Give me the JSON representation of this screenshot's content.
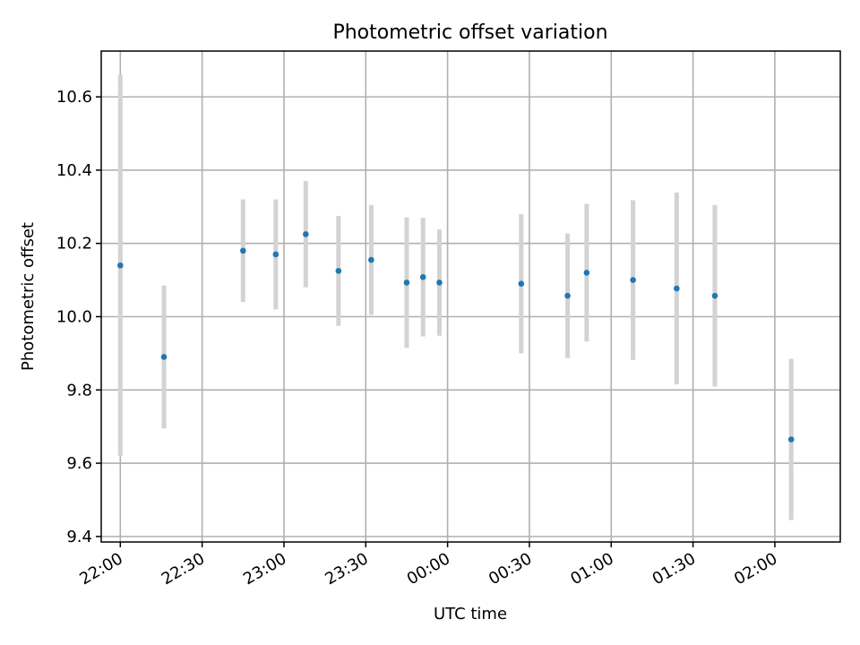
{
  "chart_data": {
    "type": "scatter",
    "title": "Photometric offset variation",
    "xlabel": "UTC time",
    "ylabel": "Photometric offset",
    "grid": true,
    "x_axis_kind": "time",
    "x_tick_labels": [
      "22:00",
      "22:30",
      "23:00",
      "23:30",
      "00:00",
      "00:30",
      "01:00",
      "01:30",
      "02:00"
    ],
    "y_ticks": [
      9.4,
      9.6,
      9.8,
      10.0,
      10.2,
      10.4,
      10.6
    ],
    "y_tick_labels": [
      "9.4",
      "9.6",
      "9.8",
      "10.0",
      "10.2",
      "10.4",
      "10.6"
    ],
    "ylim": [
      9.385,
      10.725
    ],
    "xlim": [
      "21:53",
      "02:24"
    ],
    "series": [
      {
        "marker_color": "#1f77b4",
        "errorbar_color": "#d3d3d3",
        "points": [
          {
            "x": "22:00",
            "y": 10.14,
            "err": 0.52
          },
          {
            "x": "22:16",
            "y": 9.89,
            "err": 0.195
          },
          {
            "x": "22:45",
            "y": 10.18,
            "err": 0.14
          },
          {
            "x": "22:57",
            "y": 10.17,
            "err": 0.15
          },
          {
            "x": "23:08",
            "y": 10.225,
            "err": 0.145
          },
          {
            "x": "23:20",
            "y": 10.125,
            "err": 0.15
          },
          {
            "x": "23:32",
            "y": 10.155,
            "err": 0.15
          },
          {
            "x": "23:45",
            "y": 10.093,
            "err": 0.178
          },
          {
            "x": "23:51",
            "y": 10.108,
            "err": 0.162
          },
          {
            "x": "23:57",
            "y": 10.093,
            "err": 0.145
          },
          {
            "x": "00:27",
            "y": 10.09,
            "err": 0.19
          },
          {
            "x": "00:44",
            "y": 10.057,
            "err": 0.17
          },
          {
            "x": "00:51",
            "y": 10.12,
            "err": 0.188
          },
          {
            "x": "01:08",
            "y": 10.1,
            "err": 0.218
          },
          {
            "x": "01:24",
            "y": 10.077,
            "err": 0.262
          },
          {
            "x": "01:38",
            "y": 10.057,
            "err": 0.248
          },
          {
            "x": "02:06",
            "y": 9.665,
            "err": 0.22
          }
        ]
      }
    ]
  }
}
